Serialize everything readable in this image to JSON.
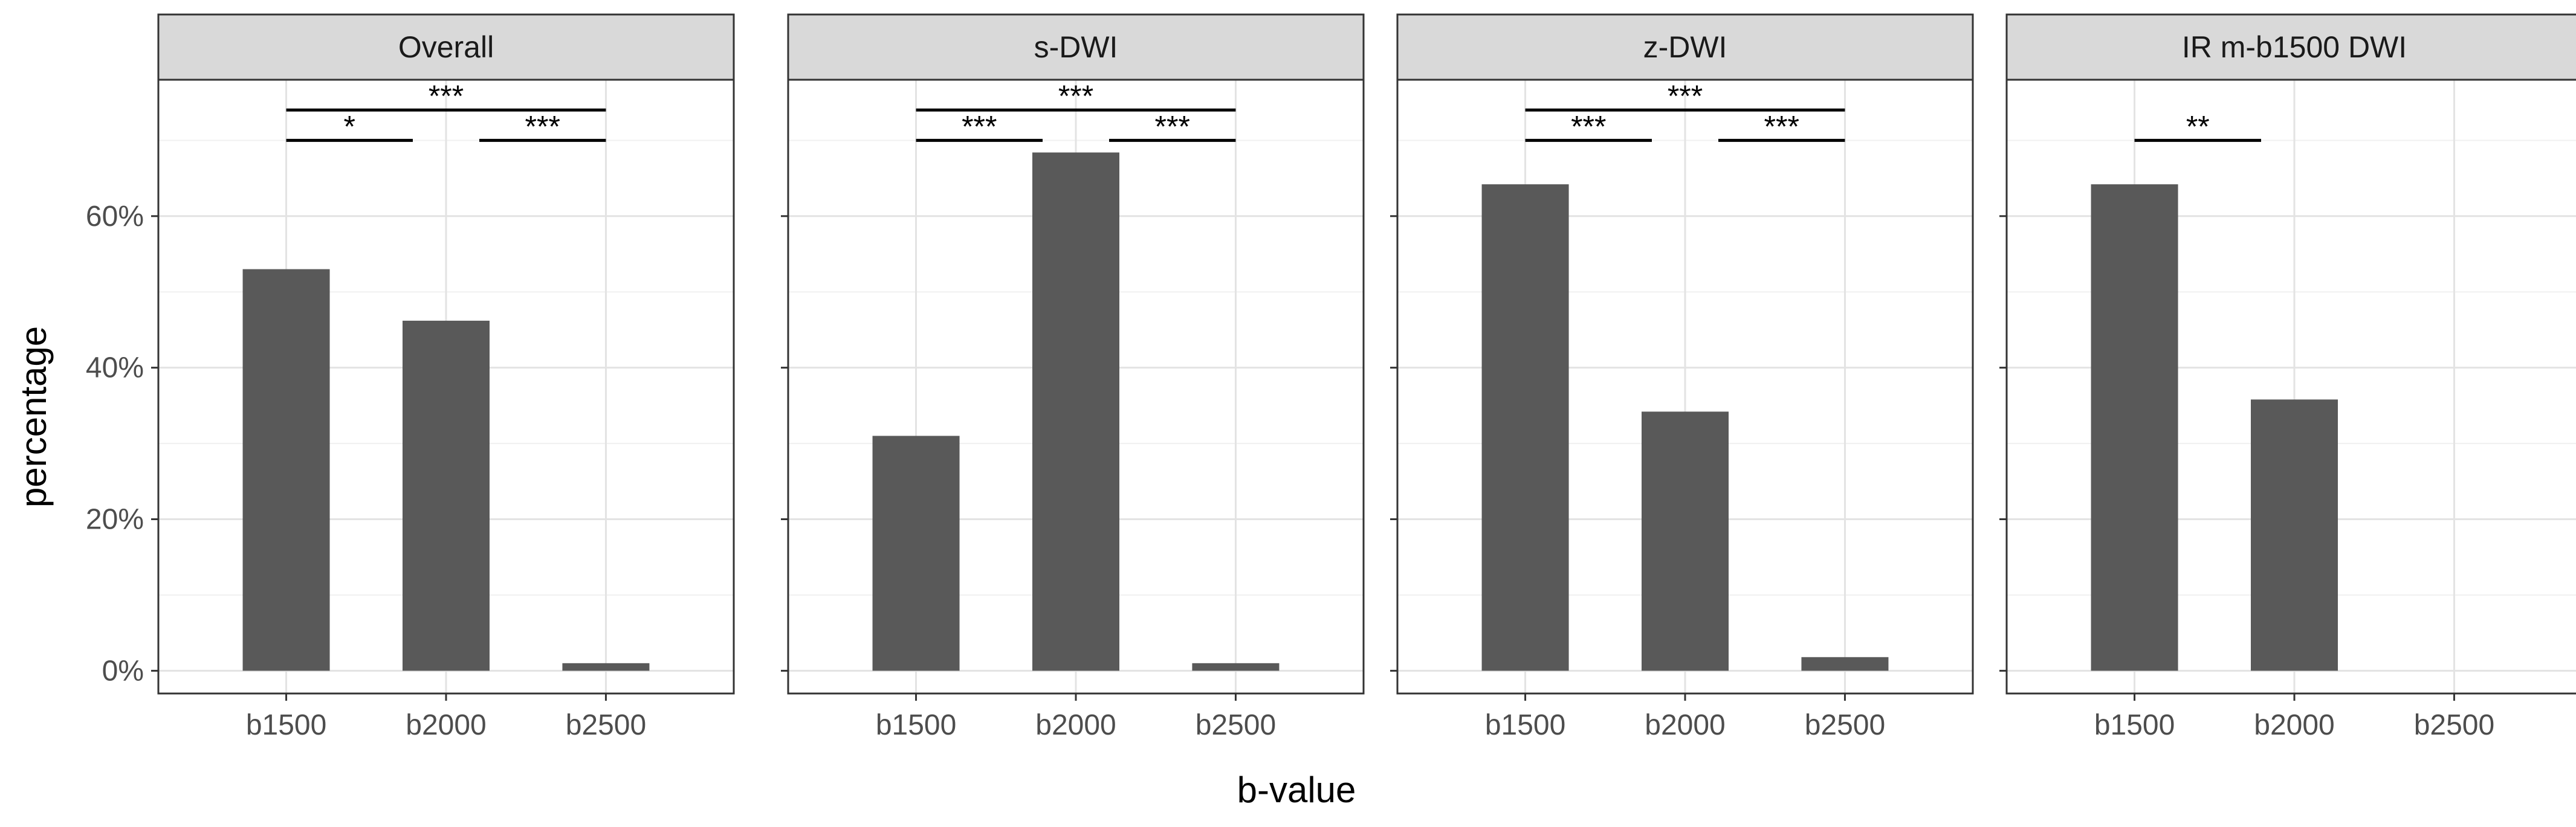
{
  "chart_data": {
    "type": "bar",
    "faceted": true,
    "xlabel": "b-value",
    "ylabel": "percentage",
    "categories": [
      "b1500",
      "b2000",
      "b2500"
    ],
    "ylim": [
      -3,
      78
    ],
    "y_ticks": [
      0,
      20,
      40,
      60
    ],
    "y_tick_labels": [
      "0%",
      "20%",
      "40%",
      "60%"
    ],
    "grid": true,
    "bar_color": "#595959",
    "strip_color": "#d9d9d9",
    "panels": [
      {
        "title": "Overall",
        "values": [
          53,
          46.2,
          1
        ],
        "brackets": [
          {
            "from": "b1500",
            "to": "b2500",
            "label": "***",
            "y": 74
          },
          {
            "from": "b1500",
            "to": "b2000",
            "label": "*",
            "y": 70
          },
          {
            "from": "b2000",
            "to": "b2500",
            "label": "***",
            "y": 70
          }
        ]
      },
      {
        "title": "s-DWI",
        "values": [
          31,
          68.4,
          1
        ],
        "brackets": [
          {
            "from": "b1500",
            "to": "b2500",
            "label": "***",
            "y": 74
          },
          {
            "from": "b1500",
            "to": "b2000",
            "label": "***",
            "y": 70
          },
          {
            "from": "b2000",
            "to": "b2500",
            "label": "***",
            "y": 70
          }
        ]
      },
      {
        "title": "z-DWI",
        "values": [
          64.2,
          34.2,
          1.8
        ],
        "brackets": [
          {
            "from": "b1500",
            "to": "b2500",
            "label": "***",
            "y": 74
          },
          {
            "from": "b1500",
            "to": "b2000",
            "label": "***",
            "y": 70
          },
          {
            "from": "b2000",
            "to": "b2500",
            "label": "***",
            "y": 70
          }
        ]
      },
      {
        "title": "IR m-b1500 DWI",
        "values": [
          64.2,
          35.8,
          0
        ],
        "brackets": [
          {
            "from": "b1500",
            "to": "b2000",
            "label": "**",
            "y": 70
          }
        ]
      }
    ]
  }
}
